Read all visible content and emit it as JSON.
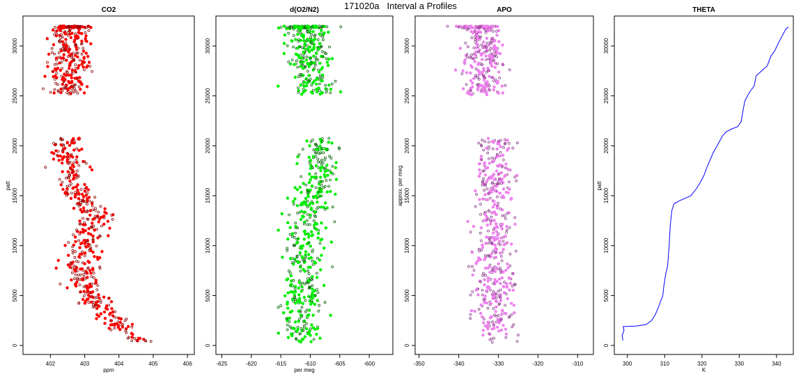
{
  "figure": {
    "title": "171020a   Interval a Profiles"
  },
  "chart_data": [
    {
      "type": "scatter",
      "title": "CO2",
      "xlabel": "ppm",
      "ylabel": "patt",
      "xlim": [
        401.2,
        406.2
      ],
      "ylim": [
        -900,
        33000
      ],
      "xticks": [
        402,
        403,
        404,
        405,
        406
      ],
      "yticks": [
        0,
        5000,
        10000,
        15000,
        20000,
        25000,
        30000
      ],
      "colors": {
        "fill": "#ff0000",
        "outline": "#8b0000"
      },
      "segments": [
        {
          "y_range": [
            300,
            20800
          ],
          "x_center": [
            [
              300,
              404.7
            ],
            [
              1500,
              404.2
            ],
            [
              3000,
              403.7
            ],
            [
              5000,
              403.1
            ],
            [
              8000,
              402.9
            ],
            [
              11000,
              403.1
            ],
            [
              13000,
              403.3
            ],
            [
              15500,
              402.7
            ],
            [
              18000,
              402.6
            ],
            [
              20800,
              402.5
            ]
          ],
          "spread": 0.45,
          "count": 470
        },
        {
          "y_range": [
            25100,
            31800
          ],
          "x_center": [
            [
              25100,
              402.5
            ],
            [
              31800,
              402.6
            ]
          ],
          "spread": 0.55,
          "count": 230
        },
        {
          "y_range": [
            31800,
            32000
          ],
          "x_center": [
            [
              31800,
              402.6
            ],
            [
              32000,
              402.6
            ]
          ],
          "spread": 0.45,
          "count": 70
        }
      ]
    },
    {
      "type": "scatter",
      "title": "d(O2/N2)",
      "xlabel": "per meg",
      "ylabel": "",
      "xlim": [
        -626,
        -596
      ],
      "ylim": [
        -900,
        33000
      ],
      "xticks": [
        -625,
        -620,
        -615,
        -610,
        -605,
        -600
      ],
      "yticks": [
        0,
        5000,
        10000,
        15000,
        20000,
        25000,
        30000
      ],
      "colors": {
        "fill": "#00ee00",
        "outline": "#006400"
      },
      "segments": [
        {
          "y_range": [
            300,
            20800
          ],
          "x_center": [
            [
              300,
              -611.5
            ],
            [
              3000,
              -611.5
            ],
            [
              8000,
              -610.8
            ],
            [
              13000,
              -610.5
            ],
            [
              17000,
              -608.5
            ],
            [
              20800,
              -608.5
            ]
          ],
          "spread": 3.0,
          "count": 470
        },
        {
          "y_range": [
            25100,
            31800
          ],
          "x_center": [
            [
              25100,
              -609.5
            ],
            [
              31800,
              -610.5
            ]
          ],
          "spread": 3.5,
          "count": 230
        },
        {
          "y_range": [
            31800,
            32000
          ],
          "x_center": [
            [
              31800,
              -610.5
            ],
            [
              32000,
              -610.5
            ]
          ],
          "spread": 3.8,
          "count": 70
        }
      ]
    },
    {
      "type": "scatter",
      "title": "APO",
      "xlabel": "",
      "ylabel": "approx. per meg",
      "xlim": [
        -351,
        -306
      ],
      "ylim": [
        -900,
        33000
      ],
      "xticks": [
        -350,
        -340,
        -330,
        -320,
        -310
      ],
      "yticks": [
        0,
        5000,
        10000,
        15000,
        20000,
        25000,
        30000
      ],
      "colors": {
        "fill": "#ee82ee",
        "outline": "#8b3a8b"
      },
      "segments": [
        {
          "y_range": [
            300,
            20800
          ],
          "x_center": [
            [
              300,
              -331
            ],
            [
              20800,
              -331
            ]
          ],
          "spread": 4.5,
          "count": 470
        },
        {
          "y_range": [
            25100,
            31800
          ],
          "x_center": [
            [
              25100,
              -333
            ],
            [
              31800,
              -334
            ]
          ],
          "spread": 4.5,
          "count": 230
        },
        {
          "y_range": [
            31800,
            32000
          ],
          "x_center": [
            [
              31800,
              -336
            ],
            [
              32000,
              -336
            ]
          ],
          "spread": 4.5,
          "count": 70
        }
      ]
    },
    {
      "type": "line",
      "title": "THETA",
      "xlabel": "K",
      "ylabel": "patt",
      "xlim": [
        296.5,
        344.5
      ],
      "ylim": [
        -900,
        33000
      ],
      "xticks": [
        300,
        310,
        320,
        330,
        340
      ],
      "yticks": [
        0,
        5000,
        10000,
        15000,
        20000,
        25000,
        30000
      ],
      "colors": {
        "line": "#0000ff"
      },
      "series": [
        {
          "x": [
            298.8,
            298.6,
            299.1,
            298.9,
            299.4,
            302.5,
            305.0,
            306.5,
            307.5,
            308.5,
            309.0,
            309.5,
            309.8,
            310.2,
            310.8,
            311.2,
            311.5,
            311.9,
            312.5,
            314.0,
            317.0,
            318.5,
            319.5,
            320.5,
            321.5,
            323.0,
            324.5,
            325.5,
            326.5,
            328.0,
            329.5,
            330.5,
            331.0,
            331.5,
            332.5,
            333.0,
            334.0,
            334.5,
            336.0,
            337.5,
            338.5,
            339.5,
            340.5,
            341.5,
            342.5,
            343.2
          ],
          "y": [
            500,
            1000,
            1500,
            1900,
            1900,
            1950,
            2100,
            2500,
            3100,
            4000,
            4500,
            5000,
            6000,
            7000,
            8000,
            10000,
            12000,
            13500,
            14200,
            14500,
            15000,
            15700,
            16300,
            17000,
            18000,
            19300,
            20300,
            21000,
            21400,
            21700,
            21900,
            22400,
            23500,
            24500,
            25200,
            25500,
            26000,
            27000,
            27500,
            28000,
            29000,
            29500,
            30300,
            31000,
            31700,
            31900
          ]
        }
      ]
    }
  ]
}
